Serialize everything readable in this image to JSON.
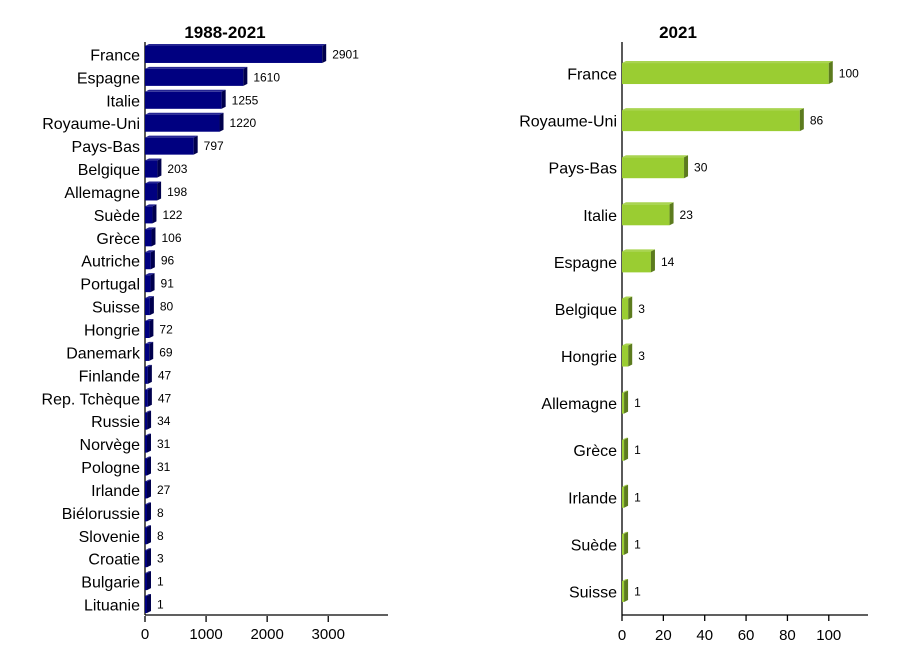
{
  "chart_data": [
    {
      "type": "bar",
      "orientation": "horizontal",
      "title": "1988-2021",
      "xlabel": "",
      "ylabel": "",
      "color": "#000080",
      "categories": [
        "France",
        "Espagne",
        "Italie",
        "Royaume-Uni",
        "Pays-Bas",
        "Belgique",
        "Allemagne",
        "Suède",
        "Grèce",
        "Autriche",
        "Portugal",
        "Suisse",
        "Hongrie",
        "Danemark",
        "Finlande",
        "Rep. Tchèque",
        "Russie",
        "Norvège",
        "Pologne",
        "Irlande",
        "Biélorussie",
        "Slovenie",
        "Croatie",
        "Bulgarie",
        "Lituanie"
      ],
      "values": [
        2901,
        1610,
        1255,
        1220,
        797,
        203,
        198,
        122,
        106,
        96,
        91,
        80,
        72,
        69,
        47,
        47,
        34,
        31,
        31,
        27,
        8,
        8,
        3,
        1,
        1
      ],
      "xlim": [
        0,
        3700
      ],
      "xticks": [
        "0",
        "1000",
        "2000",
        "3000"
      ],
      "grid": false,
      "legend": "none"
    },
    {
      "type": "bar",
      "orientation": "horizontal",
      "title": "2021",
      "xlabel": "",
      "ylabel": "",
      "color": "#9ACD32",
      "categories": [
        "France",
        "Royaume-Uni",
        "Pays-Bas",
        "Italie",
        "Espagne",
        "Belgique",
        "Hongrie",
        "Allemagne",
        "Grèce",
        "Irlande",
        "Suède",
        "Suisse"
      ],
      "values": [
        100,
        86,
        30,
        23,
        14,
        3,
        3,
        1,
        1,
        1,
        1,
        1
      ],
      "xlim": [
        0,
        118
      ],
      "xticks": [
        "0",
        "20",
        "40",
        "60",
        "80",
        "100"
      ],
      "grid": false,
      "legend": "none"
    }
  ]
}
